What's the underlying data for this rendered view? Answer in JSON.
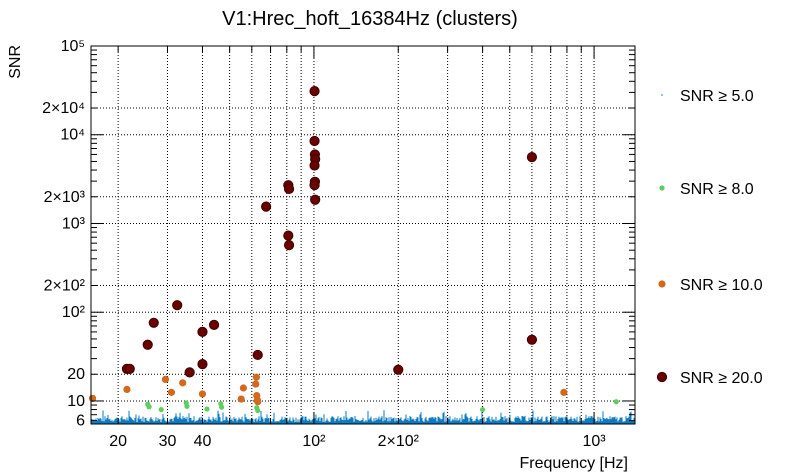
{
  "chart_data": {
    "type": "scatter",
    "title": "V1:Hrec_hoft_16384Hz (clusters)",
    "xlabel": "Frequency [Hz]",
    "ylabel": "SNR",
    "x_scale": "log",
    "y_scale": "log",
    "xlim": [
      16,
      1400
    ],
    "ylim": [
      5.5,
      100000
    ],
    "grid": true,
    "legend_position": "right",
    "x_ticks": [
      {
        "value": 20,
        "label": "20"
      },
      {
        "value": 30,
        "label": "30"
      },
      {
        "value": 40,
        "label": "40"
      },
      {
        "value": 100,
        "label": "10²"
      },
      {
        "value": 200,
        "label": "2×10²"
      },
      {
        "value": 1000,
        "label": "10³"
      }
    ],
    "y_ticks": [
      {
        "value": 6,
        "label": "6"
      },
      {
        "value": 10,
        "label": "10"
      },
      {
        "value": 20,
        "label": "20"
      },
      {
        "value": 100,
        "label": "10²"
      },
      {
        "value": 200,
        "label": "2×10²"
      },
      {
        "value": 1000,
        "label": "10³"
      },
      {
        "value": 2000,
        "label": "2×10³"
      },
      {
        "value": 10000,
        "label": "10⁴"
      },
      {
        "value": 20000,
        "label": "2×10⁴"
      },
      {
        "value": 100000,
        "label": "10⁵"
      }
    ],
    "series": [
      {
        "name": "SNR ≥ 5.0",
        "color": "#0c7bc0",
        "marker": "tiny",
        "points": []
      },
      {
        "name": "SNR ≥ 8.0",
        "color": "#5fce5f",
        "marker": "small",
        "points": [
          {
            "x": 25.5,
            "y": 9.2
          },
          {
            "x": 25.8,
            "y": 8.6
          },
          {
            "x": 28.5,
            "y": 8.0
          },
          {
            "x": 35.0,
            "y": 9.5
          },
          {
            "x": 35.2,
            "y": 8.7
          },
          {
            "x": 41.5,
            "y": 8.1
          },
          {
            "x": 46.5,
            "y": 9.3
          },
          {
            "x": 46.8,
            "y": 8.5
          },
          {
            "x": 62.5,
            "y": 8.4
          },
          {
            "x": 63.0,
            "y": 7.8
          },
          {
            "x": 400,
            "y": 8.0
          },
          {
            "x": 1200,
            "y": 9.8
          }
        ]
      },
      {
        "name": "SNR ≥ 10.0",
        "color": "#d2691e",
        "marker": "medium",
        "points": [
          {
            "x": 16.2,
            "y": 10.7
          },
          {
            "x": 21.5,
            "y": 13.5
          },
          {
            "x": 29.5,
            "y": 17.5
          },
          {
            "x": 31.0,
            "y": 12.5
          },
          {
            "x": 34.0,
            "y": 16.0
          },
          {
            "x": 40.0,
            "y": 12.0
          },
          {
            "x": 55.0,
            "y": 10.5
          },
          {
            "x": 56.0,
            "y": 14.0
          },
          {
            "x": 62.0,
            "y": 15.5
          },
          {
            "x": 62.3,
            "y": 18.5
          },
          {
            "x": 62.5,
            "y": 11.5
          },
          {
            "x": 62.8,
            "y": 10.2
          },
          {
            "x": 63.0,
            "y": 9.8
          },
          {
            "x": 780,
            "y": 12.5
          }
        ]
      },
      {
        "name": "SNR ≥ 20.0",
        "color": "#6b0000",
        "marker": "large",
        "points": [
          {
            "x": 21.5,
            "y": 23.0
          },
          {
            "x": 22.0,
            "y": 23.0
          },
          {
            "x": 25.5,
            "y": 43.0
          },
          {
            "x": 26.8,
            "y": 76.0
          },
          {
            "x": 32.5,
            "y": 120.0
          },
          {
            "x": 36.0,
            "y": 21.0
          },
          {
            "x": 40.0,
            "y": 60.0
          },
          {
            "x": 40.0,
            "y": 26.0
          },
          {
            "x": 44.0,
            "y": 72.0
          },
          {
            "x": 63.0,
            "y": 33.0
          },
          {
            "x": 67.5,
            "y": 1550
          },
          {
            "x": 81.0,
            "y": 2700
          },
          {
            "x": 81.5,
            "y": 2450
          },
          {
            "x": 81.0,
            "y": 730
          },
          {
            "x": 81.5,
            "y": 570
          },
          {
            "x": 100.5,
            "y": 31000
          },
          {
            "x": 100.5,
            "y": 8500
          },
          {
            "x": 100.8,
            "y": 6000
          },
          {
            "x": 101.0,
            "y": 5300
          },
          {
            "x": 100.5,
            "y": 4500
          },
          {
            "x": 100.8,
            "y": 2950
          },
          {
            "x": 100.5,
            "y": 2700
          },
          {
            "x": 101.0,
            "y": 1850
          },
          {
            "x": 200,
            "y": 22.5
          },
          {
            "x": 600,
            "y": 5600
          },
          {
            "x": 600,
            "y": 49.0
          }
        ]
      }
    ]
  }
}
